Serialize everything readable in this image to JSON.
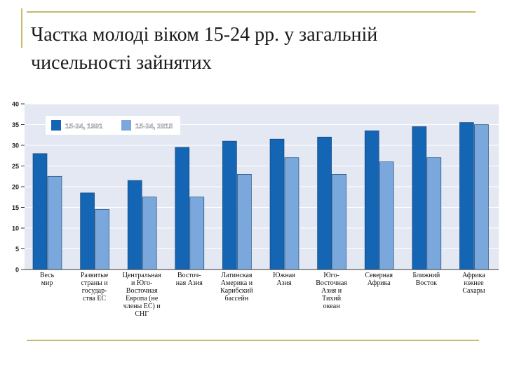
{
  "title": "Частка молоді віком 15-24 рр. у загальній чисельності зайнятих",
  "chart_data": {
    "type": "bar",
    "title": "",
    "xlabel": "",
    "ylabel": "",
    "ylim": [
      0,
      40
    ],
    "yticks": [
      0,
      5,
      10,
      15,
      20,
      25,
      30,
      35,
      40
    ],
    "grid": true,
    "legend_position": "top-left",
    "categories": [
      "Весь\nмир",
      "Развитые\nстраны и\nгосудар-\nства ЕС",
      "Центральная\nи Юго-\nВосточная\nЕвропа (не\nчлены ЕС) и\nСНГ",
      "Восточ-\nная Азия",
      "Латинская\nАмерика и\nКарибский\nбассейн",
      "Южная\nАзия",
      "Юго-\nВосточная\nАзия и\nТихий\nокеан",
      "Северная\nАфрика",
      "Ближний\nВосток",
      "Африка\nюжнее\nСахары"
    ],
    "series": [
      {
        "name": "15-24, 1991",
        "color": "#1565b5",
        "values": [
          28,
          18.5,
          21.5,
          29.5,
          31,
          31.5,
          32,
          33.5,
          34.5,
          35.5
        ]
      },
      {
        "name": "15-24, 2015",
        "color": "#7aa8dc",
        "values": [
          22.5,
          14.5,
          17.5,
          17.5,
          23,
          27,
          23,
          26,
          27,
          35
        ]
      }
    ],
    "colors": {
      "background": "#e3e8f2",
      "gridline": "#ffffff",
      "axis": "#333333"
    }
  }
}
